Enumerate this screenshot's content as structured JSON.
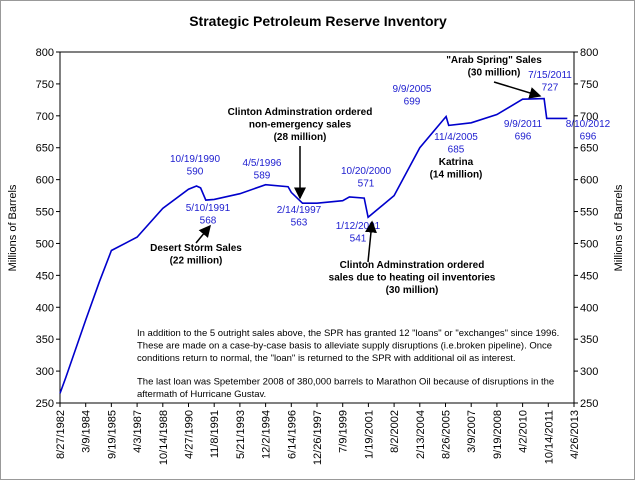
{
  "chart_data": {
    "type": "line",
    "title": "Strategic Petroleum Reserve Inventory",
    "y_label": "Millions of Barrels",
    "y2_label": "Millions of Barrels",
    "color": "#0000cc",
    "xlim": [
      "8/27/1982",
      "4/26/2013"
    ],
    "xticks": [
      "8/27/1982",
      "3/9/1984",
      "9/19/1985",
      "4/3/1987",
      "10/14/1988",
      "4/27/1990",
      "11/8/1991",
      "5/21/1993",
      "12/2/1994",
      "6/14/1996",
      "12/26/1997",
      "7/9/1999",
      "1/19/2001",
      "8/2/2002",
      "2/13/2004",
      "8/26/2005",
      "3/9/2007",
      "9/19/2008",
      "4/2/2010",
      "10/14/2011",
      "4/26/2013"
    ],
    "ylim": [
      250,
      800
    ],
    "yticks": [
      250,
      300,
      350,
      400,
      450,
      500,
      550,
      600,
      650,
      700,
      750,
      800
    ],
    "y2lim": [
      250,
      800
    ],
    "y2ticks": [
      250,
      300,
      350,
      400,
      450,
      500,
      550,
      600,
      650,
      700,
      750,
      800
    ],
    "x": [
      "8/27/1982",
      "1/1/1983",
      "3/9/1984",
      "1/1/1985",
      "9/19/1985",
      "4/3/1987",
      "10/14/1988",
      "4/27/1990",
      "10/19/1990",
      "1/15/1991",
      "5/10/1991",
      "11/8/1991",
      "5/21/1993",
      "12/2/1994",
      "4/5/1996",
      "6/14/1996",
      "2/14/1997",
      "12/26/1997",
      "7/9/1999",
      "12/1/1999",
      "10/20/2000",
      "1/12/2001",
      "8/2/2002",
      "2/13/2004",
      "9/9/2005",
      "11/4/2005",
      "3/9/2007",
      "9/19/2008",
      "4/2/2010",
      "7/15/2011",
      "9/9/2011",
      "8/10/2012",
      "12/1/2012"
    ],
    "values": [
      265,
      290,
      380,
      440,
      489,
      510,
      555,
      585,
      590,
      587,
      568,
      569,
      578,
      592,
      589,
      580,
      563,
      563,
      567,
      573,
      571,
      541,
      575,
      650,
      699,
      685,
      689,
      702,
      726,
      727,
      696,
      696,
      696
    ],
    "annotations": [
      [
        "10/19/1990",
        "590"
      ],
      [
        "5/10/1991",
        "568"
      ],
      [
        "Desert Storm Sales",
        "(22 million)"
      ],
      [
        "Clinton Adminstration ordered",
        "non-emergency sales",
        "(28 million)"
      ],
      [
        "4/5/1996",
        "589"
      ],
      [
        "2/14/1997",
        "563"
      ],
      [
        "10/20/2000",
        "571"
      ],
      [
        "1/12/2001",
        "541"
      ],
      [
        "Clinton Adminstration ordered",
        "sales due to heating oil inventories",
        "(30 million)"
      ],
      [
        "9/9/2005",
        "699"
      ],
      [
        "11/4/2005",
        "685"
      ],
      [
        "Katrina",
        "(14 million)"
      ],
      [
        "\"Arab Spring\" Sales",
        "(30 million)"
      ],
      [
        "7/15/2011",
        "727"
      ],
      [
        "9/9/2011",
        "696"
      ],
      [
        "8/10/2012",
        "696"
      ]
    ],
    "notes": [
      [
        "In addition to the 5 outright sales above, the SPR has granted 12 \"loans\" or \"exchanges\" since 1996.",
        "These are made on a case-by-case basis to alleviate supply disruptions (i.e.broken pipeline).  Once",
        "conditions return to normal, the \"loan\" is returned to the SPR with additional oil as interest."
      ],
      [
        "The last loan was Spetember 2008 of 380,000 barrels to Marathon Oil because of disruptions in the",
        "aftermath of Hurricane Gustav."
      ]
    ]
  }
}
